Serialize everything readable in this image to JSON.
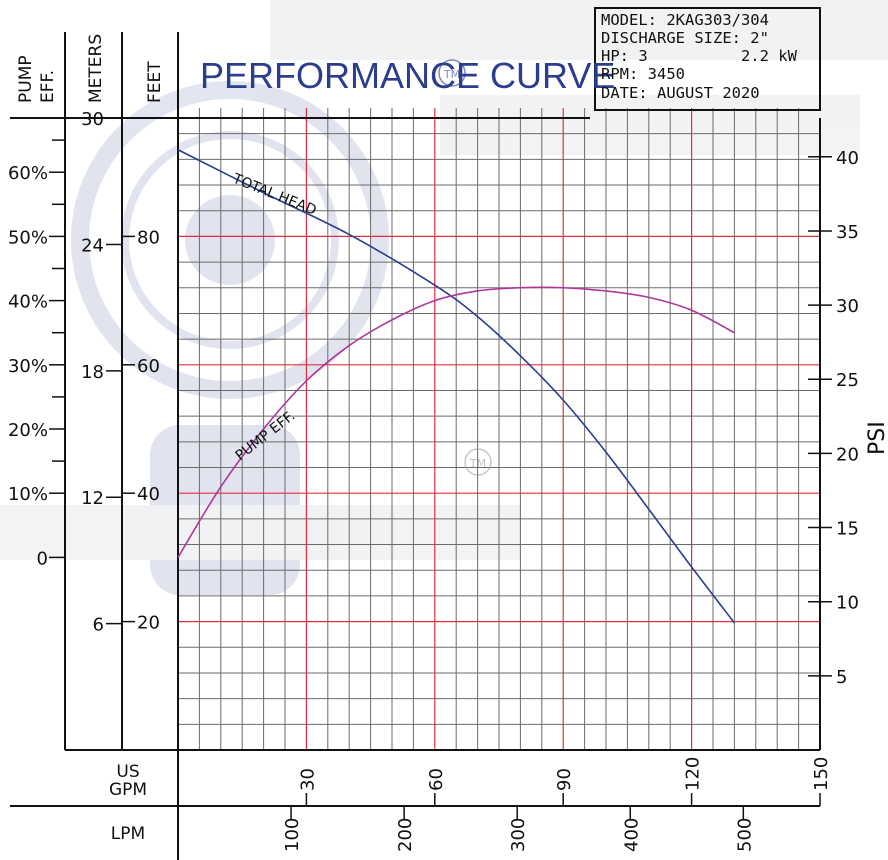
{
  "chart_data": {
    "type": "line",
    "title": "PERFORMANCE CURVE",
    "trademark": "TM",
    "info_box": [
      "MODEL: 2KAG303/304",
      "DISCHARGE SIZE: 2\"",
      "HP: 3          2.2 kW",
      "RPM: 3450",
      "DATE: AUGUST 2020"
    ],
    "axis_titles": {
      "eff": [
        "PUMP",
        "EFF."
      ],
      "meters": "METERS",
      "feet": "FEET",
      "psi": "PSI",
      "gpm": [
        "US",
        "GPM"
      ],
      "lpm": "LPM"
    },
    "x": {
      "label": "US GPM",
      "range": [
        0,
        150
      ],
      "ticks": [
        30,
        60,
        90,
        120,
        150
      ],
      "lpm_ticks": [
        100,
        200,
        300,
        400,
        500
      ]
    },
    "y_feet": {
      "label": "FEET",
      "range": [
        0,
        100
      ],
      "ticks": [
        20,
        40,
        60,
        80
      ]
    },
    "y_meters": {
      "label": "METERS",
      "ticks": [
        6,
        12,
        18,
        24,
        30
      ]
    },
    "y_eff": {
      "label": "PUMP EFF.",
      "ticks": [
        "0",
        "10%",
        "20%",
        "30%",
        "40%",
        "50%",
        "60%"
      ]
    },
    "y_psi": {
      "label": "PSI",
      "ticks": [
        5,
        10,
        15,
        20,
        25,
        30,
        35,
        40
      ]
    },
    "series": [
      {
        "name": "TOTAL HEAD",
        "color": "#2a3d8f",
        "units": "feet",
        "x": [
          0,
          20,
          40,
          60,
          70,
          80,
          90,
          100,
          110,
          120,
          130
        ],
        "y": [
          93.5,
          86.8,
          80.3,
          72.4,
          67.5,
          61.4,
          54.5,
          46.4,
          37.5,
          28.5,
          19.8
        ]
      },
      {
        "name": "PUMP EFF.",
        "color": "#b0369a",
        "units": "percent",
        "x": [
          0,
          10,
          20,
          30,
          40,
          50,
          60,
          70,
          80,
          90,
          100,
          110,
          120,
          130
        ],
        "y": [
          0,
          11,
          20,
          27.5,
          33,
          37,
          40,
          41.5,
          42,
          42,
          41.5,
          40.5,
          38.5,
          35
        ]
      }
    ],
    "grid": true
  }
}
